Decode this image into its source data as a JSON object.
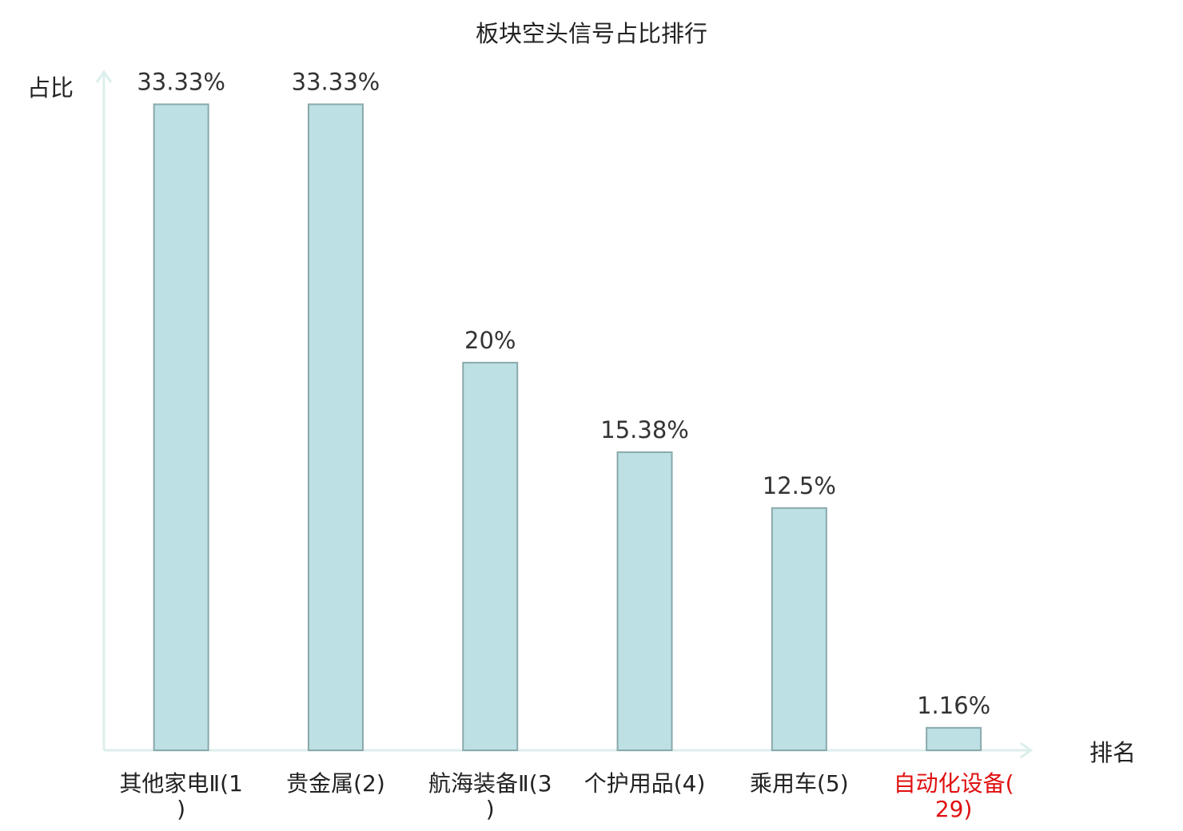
{
  "chart_data": {
    "type": "bar",
    "title": "板块空头信号占比排行",
    "y_label": "占比",
    "x_label": "排名",
    "categories": [
      "其他家电Ⅱ(1)",
      "贵金属(2)",
      "航海装备Ⅱ(3)",
      "个护用品(4)",
      "乘用车(5)",
      "自动化设备(29)"
    ],
    "category_colors": [
      "#222222",
      "#222222",
      "#222222",
      "#222222",
      "#222222",
      "#e01010"
    ],
    "values": [
      33.33,
      33.33,
      20,
      15.38,
      12.5,
      1.16
    ],
    "value_labels": [
      "33.33%",
      "33.33%",
      "20%",
      "15.38%",
      "12.5%",
      "1.16%"
    ],
    "color": "#bce0e3",
    "edge_color": "#8aa9ab",
    "axis_color": "#dcefec",
    "ylim": [
      0,
      35
    ]
  }
}
